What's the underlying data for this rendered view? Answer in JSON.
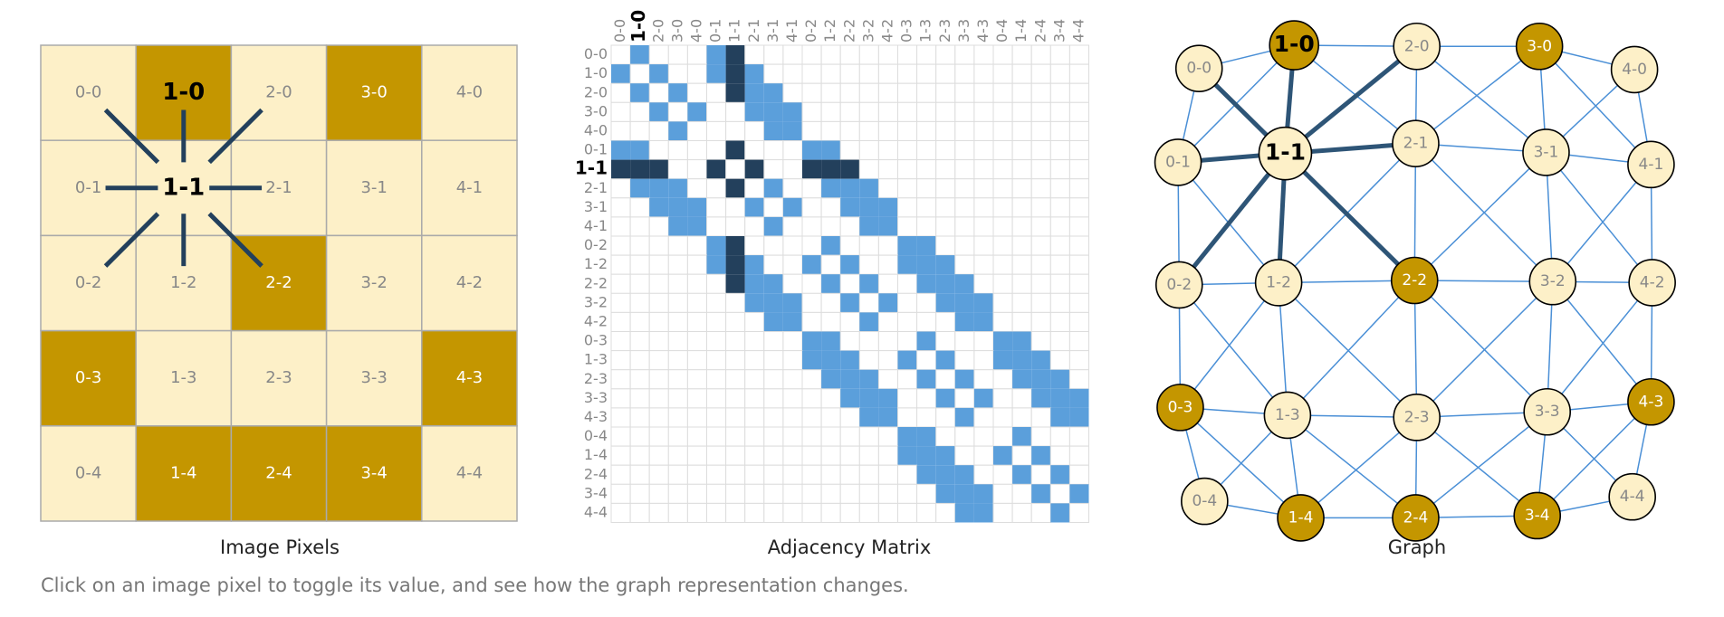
{
  "pixels": {
    "title": "Image Pixels",
    "labels": [
      "0-0",
      "1-0",
      "2-0",
      "3-0",
      "4-0",
      "0-1",
      "1-1",
      "2-1",
      "3-1",
      "4-1",
      "0-2",
      "1-2",
      "2-2",
      "3-2",
      "4-2",
      "0-3",
      "1-3",
      "2-3",
      "3-3",
      "4-3",
      "0-4",
      "1-4",
      "2-4",
      "3-4",
      "4-4"
    ],
    "values": [
      0,
      1,
      0,
      1,
      0,
      0,
      0,
      0,
      0,
      0,
      0,
      0,
      1,
      0,
      0,
      1,
      0,
      0,
      0,
      1,
      0,
      1,
      1,
      1,
      0
    ],
    "selected_index": 6,
    "hover_index": 1
  },
  "matrix": {
    "title": "Adjacency Matrix"
  },
  "graph": {
    "title": "Graph"
  },
  "caption": "Click on an image pixel to toggle its value, and see how the graph representation changes."
}
